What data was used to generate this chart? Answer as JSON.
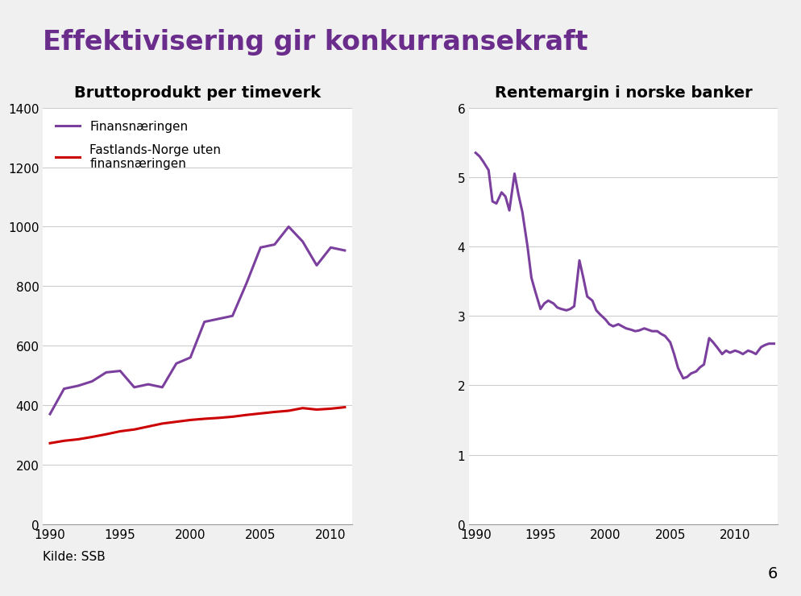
{
  "title_main": "Effektivisering gir konkurransekraft",
  "title_color": "#6B2D8B",
  "background_color": "#F0F0F0",
  "chart_bg_color": "#FFFFFF",
  "separator_color": "#5B9BD5",
  "chart1_title": "Bruttoprodukt per timeverk",
  "chart1_ylim": [
    0,
    1400
  ],
  "chart1_yticks": [
    0,
    200,
    400,
    600,
    800,
    1000,
    1200,
    1400
  ],
  "chart1_xticks": [
    1990,
    1995,
    2000,
    2005,
    2010
  ],
  "finansnaringen_label": "Finansnæringen",
  "finansnaringen_color": "#7B3F9E",
  "finansnaringen_x": [
    1990,
    1991,
    1992,
    1993,
    1994,
    1995,
    1996,
    1997,
    1998,
    1999,
    2000,
    2001,
    2002,
    2003,
    2004,
    2005,
    2006,
    2007,
    2008,
    2009,
    2010,
    2011
  ],
  "finansnaringen_y": [
    370,
    455,
    465,
    480,
    510,
    515,
    460,
    470,
    460,
    540,
    560,
    680,
    690,
    700,
    810,
    930,
    940,
    1000,
    950,
    870,
    930,
    920
  ],
  "fastlands_label": "Fastlands-Norge uten\nfinansnæringen",
  "fastlands_color": "#CC0000",
  "fastlands_x": [
    1990,
    1991,
    1992,
    1993,
    1994,
    1995,
    1996,
    1997,
    1998,
    1999,
    2000,
    2001,
    2002,
    2003,
    2004,
    2005,
    2006,
    2007,
    2008,
    2009,
    2010,
    2011
  ],
  "fastlands_y": [
    272,
    280,
    285,
    293,
    302,
    312,
    318,
    328,
    338,
    344,
    350,
    354,
    357,
    361,
    367,
    372,
    377,
    381,
    390,
    385,
    388,
    393
  ],
  "chart2_title": "Rentemargin i norske banker",
  "chart2_ylim": [
    0,
    6
  ],
  "chart2_yticks": [
    0,
    1,
    2,
    3,
    4,
    5,
    6
  ],
  "chart2_xticks": [
    1990,
    1995,
    2000,
    2005,
    2010
  ],
  "rentemargin_color": "#7B3F9E",
  "rentemargin_x": [
    1990.0,
    1990.3,
    1990.6,
    1991.0,
    1991.3,
    1991.6,
    1992.0,
    1992.3,
    1992.6,
    1993.0,
    1993.3,
    1993.6,
    1994.0,
    1994.3,
    1994.6,
    1995.0,
    1995.3,
    1995.6,
    1996.0,
    1996.3,
    1996.6,
    1997.0,
    1997.3,
    1997.6,
    1998.0,
    1998.3,
    1998.6,
    1999.0,
    1999.3,
    1999.6,
    2000.0,
    2000.3,
    2000.6,
    2001.0,
    2001.3,
    2001.6,
    2002.0,
    2002.3,
    2002.6,
    2003.0,
    2003.3,
    2003.6,
    2004.0,
    2004.3,
    2004.6,
    2005.0,
    2005.3,
    2005.6,
    2006.0,
    2006.3,
    2006.6,
    2007.0,
    2007.3,
    2007.6,
    2008.0,
    2008.3,
    2008.6,
    2009.0,
    2009.3,
    2009.6,
    2010.0,
    2010.3,
    2010.6,
    2011.0,
    2011.3,
    2011.6,
    2012.0,
    2012.3,
    2012.6,
    2013.0
  ],
  "rentemargin_y": [
    5.35,
    5.3,
    5.22,
    5.1,
    4.65,
    4.62,
    4.78,
    4.72,
    4.52,
    5.05,
    4.75,
    4.5,
    4.0,
    3.55,
    3.35,
    3.1,
    3.18,
    3.22,
    3.18,
    3.12,
    3.1,
    3.08,
    3.1,
    3.14,
    3.8,
    3.55,
    3.28,
    3.22,
    3.08,
    3.02,
    2.95,
    2.88,
    2.85,
    2.88,
    2.85,
    2.82,
    2.8,
    2.78,
    2.79,
    2.82,
    2.8,
    2.78,
    2.78,
    2.74,
    2.71,
    2.62,
    2.45,
    2.25,
    2.1,
    2.12,
    2.17,
    2.2,
    2.26,
    2.3,
    2.68,
    2.62,
    2.55,
    2.45,
    2.5,
    2.47,
    2.5,
    2.48,
    2.45,
    2.5,
    2.48,
    2.45,
    2.55,
    2.58,
    2.6,
    2.6
  ],
  "grid_color": "#CCCCCC",
  "tick_label_fontsize": 11,
  "chart_title_fontsize": 14,
  "legend_fontsize": 11,
  "footer_text": "Kilde: SSB",
  "page_number": "6",
  "line_width": 2.2
}
